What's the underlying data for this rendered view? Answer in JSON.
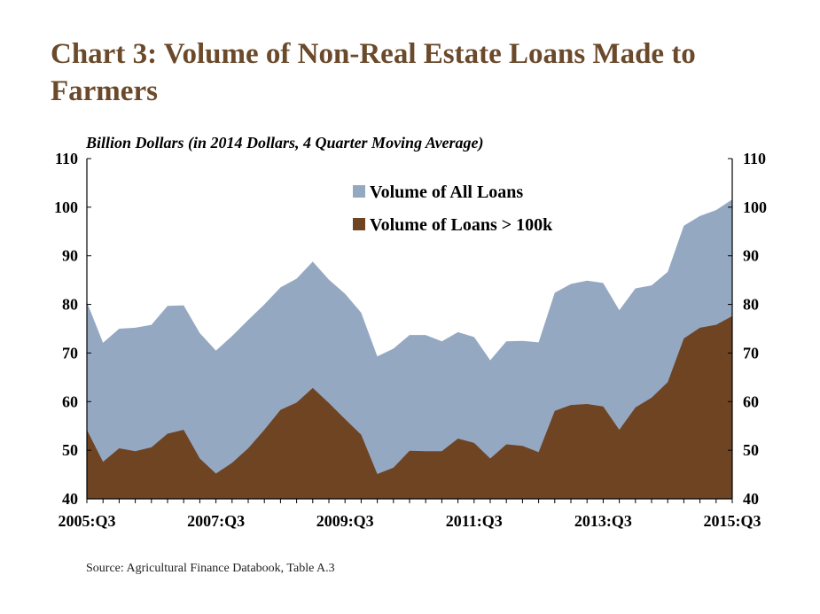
{
  "title": "Chart 3: Volume of Non-Real Estate Loans Made to Farmers",
  "source": "Source: Agricultural Finance Databook, Table A.3",
  "chart_data": {
    "type": "area",
    "subtitle": "Billion Dollars (in 2014 Dollars, 4 Quarter Moving Average)",
    "x": [
      "2005:Q3",
      "2005:Q4",
      "2006:Q1",
      "2006:Q2",
      "2006:Q3",
      "2006:Q4",
      "2007:Q1",
      "2007:Q2",
      "2007:Q3",
      "2007:Q4",
      "2008:Q1",
      "2008:Q2",
      "2008:Q3",
      "2008:Q4",
      "2009:Q1",
      "2009:Q2",
      "2009:Q3",
      "2009:Q4",
      "2010:Q1",
      "2010:Q2",
      "2010:Q3",
      "2010:Q4",
      "2011:Q1",
      "2011:Q2",
      "2011:Q3",
      "2011:Q4",
      "2012:Q1",
      "2012:Q2",
      "2012:Q3",
      "2012:Q4",
      "2013:Q1",
      "2013:Q2",
      "2013:Q3",
      "2013:Q4",
      "2014:Q1",
      "2014:Q2",
      "2014:Q3",
      "2014:Q4",
      "2015:Q1",
      "2015:Q2",
      "2015:Q3"
    ],
    "xtick_labels": [
      "2005:Q3",
      "2007:Q3",
      "2009:Q3",
      "2011:Q3",
      "2013:Q3",
      "2015:Q3"
    ],
    "ylim": [
      40,
      110
    ],
    "yticks": [
      40,
      50,
      60,
      70,
      80,
      90,
      100,
      110
    ],
    "legend_position": "top-center",
    "series": [
      {
        "name": "Volume of All Loans",
        "color": "#95a8c2",
        "values": [
          80.5,
          72.1,
          75.0,
          75.2,
          75.8,
          79.7,
          79.8,
          74.1,
          70.5,
          73.5,
          76.8,
          80.0,
          83.5,
          85.3,
          88.8,
          85.1,
          82.2,
          78.3,
          69.3,
          70.9,
          73.7,
          73.7,
          72.4,
          74.3,
          73.3,
          68.5,
          72.4,
          72.5,
          72.2,
          82.4,
          84.2,
          84.9,
          84.4,
          78.8,
          83.3,
          83.9,
          86.7,
          96.2,
          98.2,
          99.4,
          101.6
        ]
      },
      {
        "name": "Volume of Loans > 100k",
        "color": "#6e4423",
        "values": [
          54.2,
          47.6,
          50.4,
          49.8,
          50.6,
          53.4,
          54.2,
          48.3,
          45.2,
          47.4,
          50.4,
          54.2,
          58.3,
          59.8,
          62.8,
          59.7,
          56.4,
          53.2,
          45.1,
          46.4,
          49.9,
          49.8,
          49.8,
          52.4,
          51.5,
          48.3,
          51.2,
          50.9,
          49.6,
          58.1,
          59.3,
          59.5,
          59.0,
          54.2,
          58.8,
          60.8,
          64.0,
          73.0,
          75.2,
          75.8,
          77.6
        ]
      }
    ]
  }
}
